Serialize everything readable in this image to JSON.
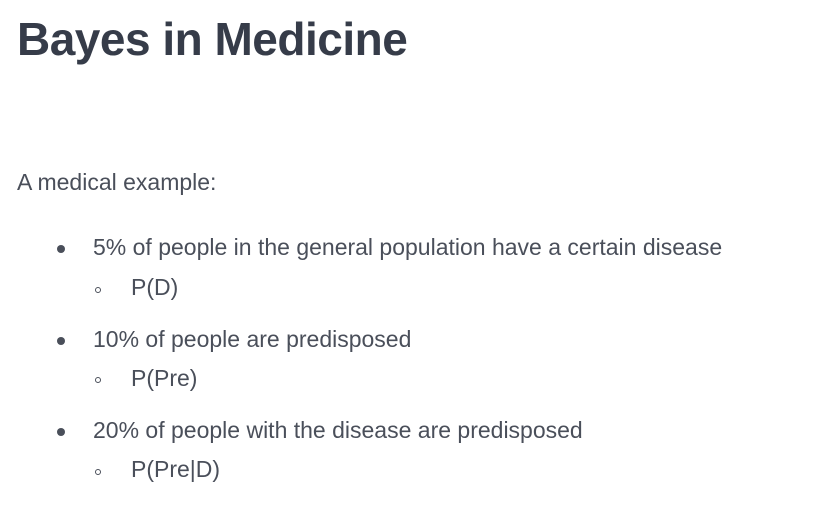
{
  "title": "Bayes in Medicine",
  "intro": "A medical example:",
  "bullets": [
    {
      "text": "5% of people in the general population have a certain disease",
      "sub": "P(D)"
    },
    {
      "text": "10% of people are predisposed",
      "sub": "P(Pre)"
    },
    {
      "text": "20% of people with the disease are predisposed",
      "sub": "P(Pre|D)"
    }
  ]
}
